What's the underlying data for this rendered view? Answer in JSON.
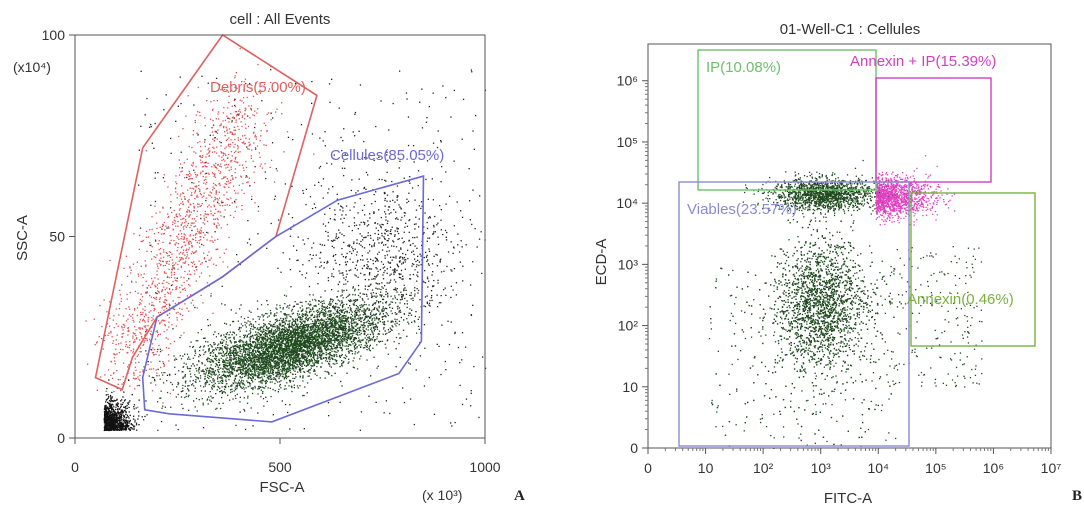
{
  "chart_data": [
    {
      "panel": "A",
      "type": "scatter",
      "title": "cell : All Events",
      "xlabel": "FSC-A",
      "ylabel": "SSC-A",
      "x_multiplier": "(x 10³)",
      "y_multiplier": "(x10⁴)",
      "xlim": [
        0,
        1000
      ],
      "ylim": [
        0,
        100
      ],
      "x_ticks": [
        "0",
        "500",
        "1000"
      ],
      "y_ticks": [
        "0",
        "50",
        "100"
      ],
      "gates": [
        {
          "name": "Debris",
          "label": "Debris(5.00%)",
          "color": "#e06060",
          "polygon": [
            [
              50,
              15
            ],
            [
              165,
              72
            ],
            [
              360,
              100
            ],
            [
              590,
              85
            ],
            [
              490,
              50
            ],
            [
              360,
              40
            ],
            [
              200,
              30
            ],
            [
              140,
              20
            ],
            [
              115,
              12
            ]
          ]
        },
        {
          "name": "Cellules",
          "label": "Cellules(85.05%)",
          "color": "#6a6ad8",
          "polygon": [
            [
              165,
              15
            ],
            [
              200,
              30
            ],
            [
              360,
              40
            ],
            [
              490,
              50
            ],
            [
              640,
              59
            ],
            [
              850,
              65
            ],
            [
              845,
              24
            ],
            [
              790,
              16
            ],
            [
              480,
              4
            ],
            [
              230,
              6
            ],
            [
              170,
              7
            ]
          ]
        }
      ],
      "populations": [
        {
          "name": "Cellules",
          "color": "#1e4a1e",
          "cx": 520,
          "cy": 23,
          "count": 5000
        },
        {
          "name": "Debris",
          "color": "#e05050",
          "cx": 240,
          "cy": 40,
          "count": 1400
        },
        {
          "name": "Origin",
          "color": "#111111",
          "cx": 70,
          "cy": 2,
          "count": 900
        },
        {
          "name": "Scatter",
          "color": "#222222",
          "cx": 600,
          "cy": 50,
          "count": 1200
        }
      ]
    },
    {
      "panel": "B",
      "type": "scatter",
      "title": "01-Well-C1 : Cellules",
      "xlabel": "FITC-A",
      "ylabel": "ECD-A",
      "xscale": "log",
      "yscale": "log",
      "x_ticks": [
        "0",
        "10",
        "10²",
        "10³",
        "10⁴",
        "10⁵",
        "10⁶",
        "10⁷"
      ],
      "y_ticks": [
        "0",
        "10",
        "10²",
        "10³",
        "10⁴",
        "10⁵",
        "10⁶"
      ],
      "gates": [
        {
          "name": "IP",
          "label": "IP(10.08%)",
          "color": "#6cc06c"
        },
        {
          "name": "Annexin + IP",
          "label": "Annexin + IP(15.39%)",
          "color": "#d040c0"
        },
        {
          "name": "Viables",
          "label": "Viables(23.57%)",
          "color": "#8a8ad0"
        },
        {
          "name": "Annexin",
          "label": "Annexin(0.46%)",
          "color": "#7ab040"
        }
      ],
      "populations": [
        {
          "name": "IP",
          "color": "#1e4a1e",
          "cx": 3.05,
          "cy": 4.15,
          "count": 1500
        },
        {
          "name": "Annexin + IP",
          "color": "#e040c0",
          "cx": 3.95,
          "cy": 4.1,
          "count": 1200
        },
        {
          "name": "Viables",
          "color": "#1e4a1e",
          "cx": 3.0,
          "cy": 2.35,
          "count": 3200
        },
        {
          "name": "Annexin",
          "color": "#1e4a1e",
          "cx": 4.35,
          "cy": 2.0,
          "count": 200
        }
      ]
    }
  ],
  "labels": {
    "panel_a_letter": "A",
    "panel_b_letter": "B"
  }
}
